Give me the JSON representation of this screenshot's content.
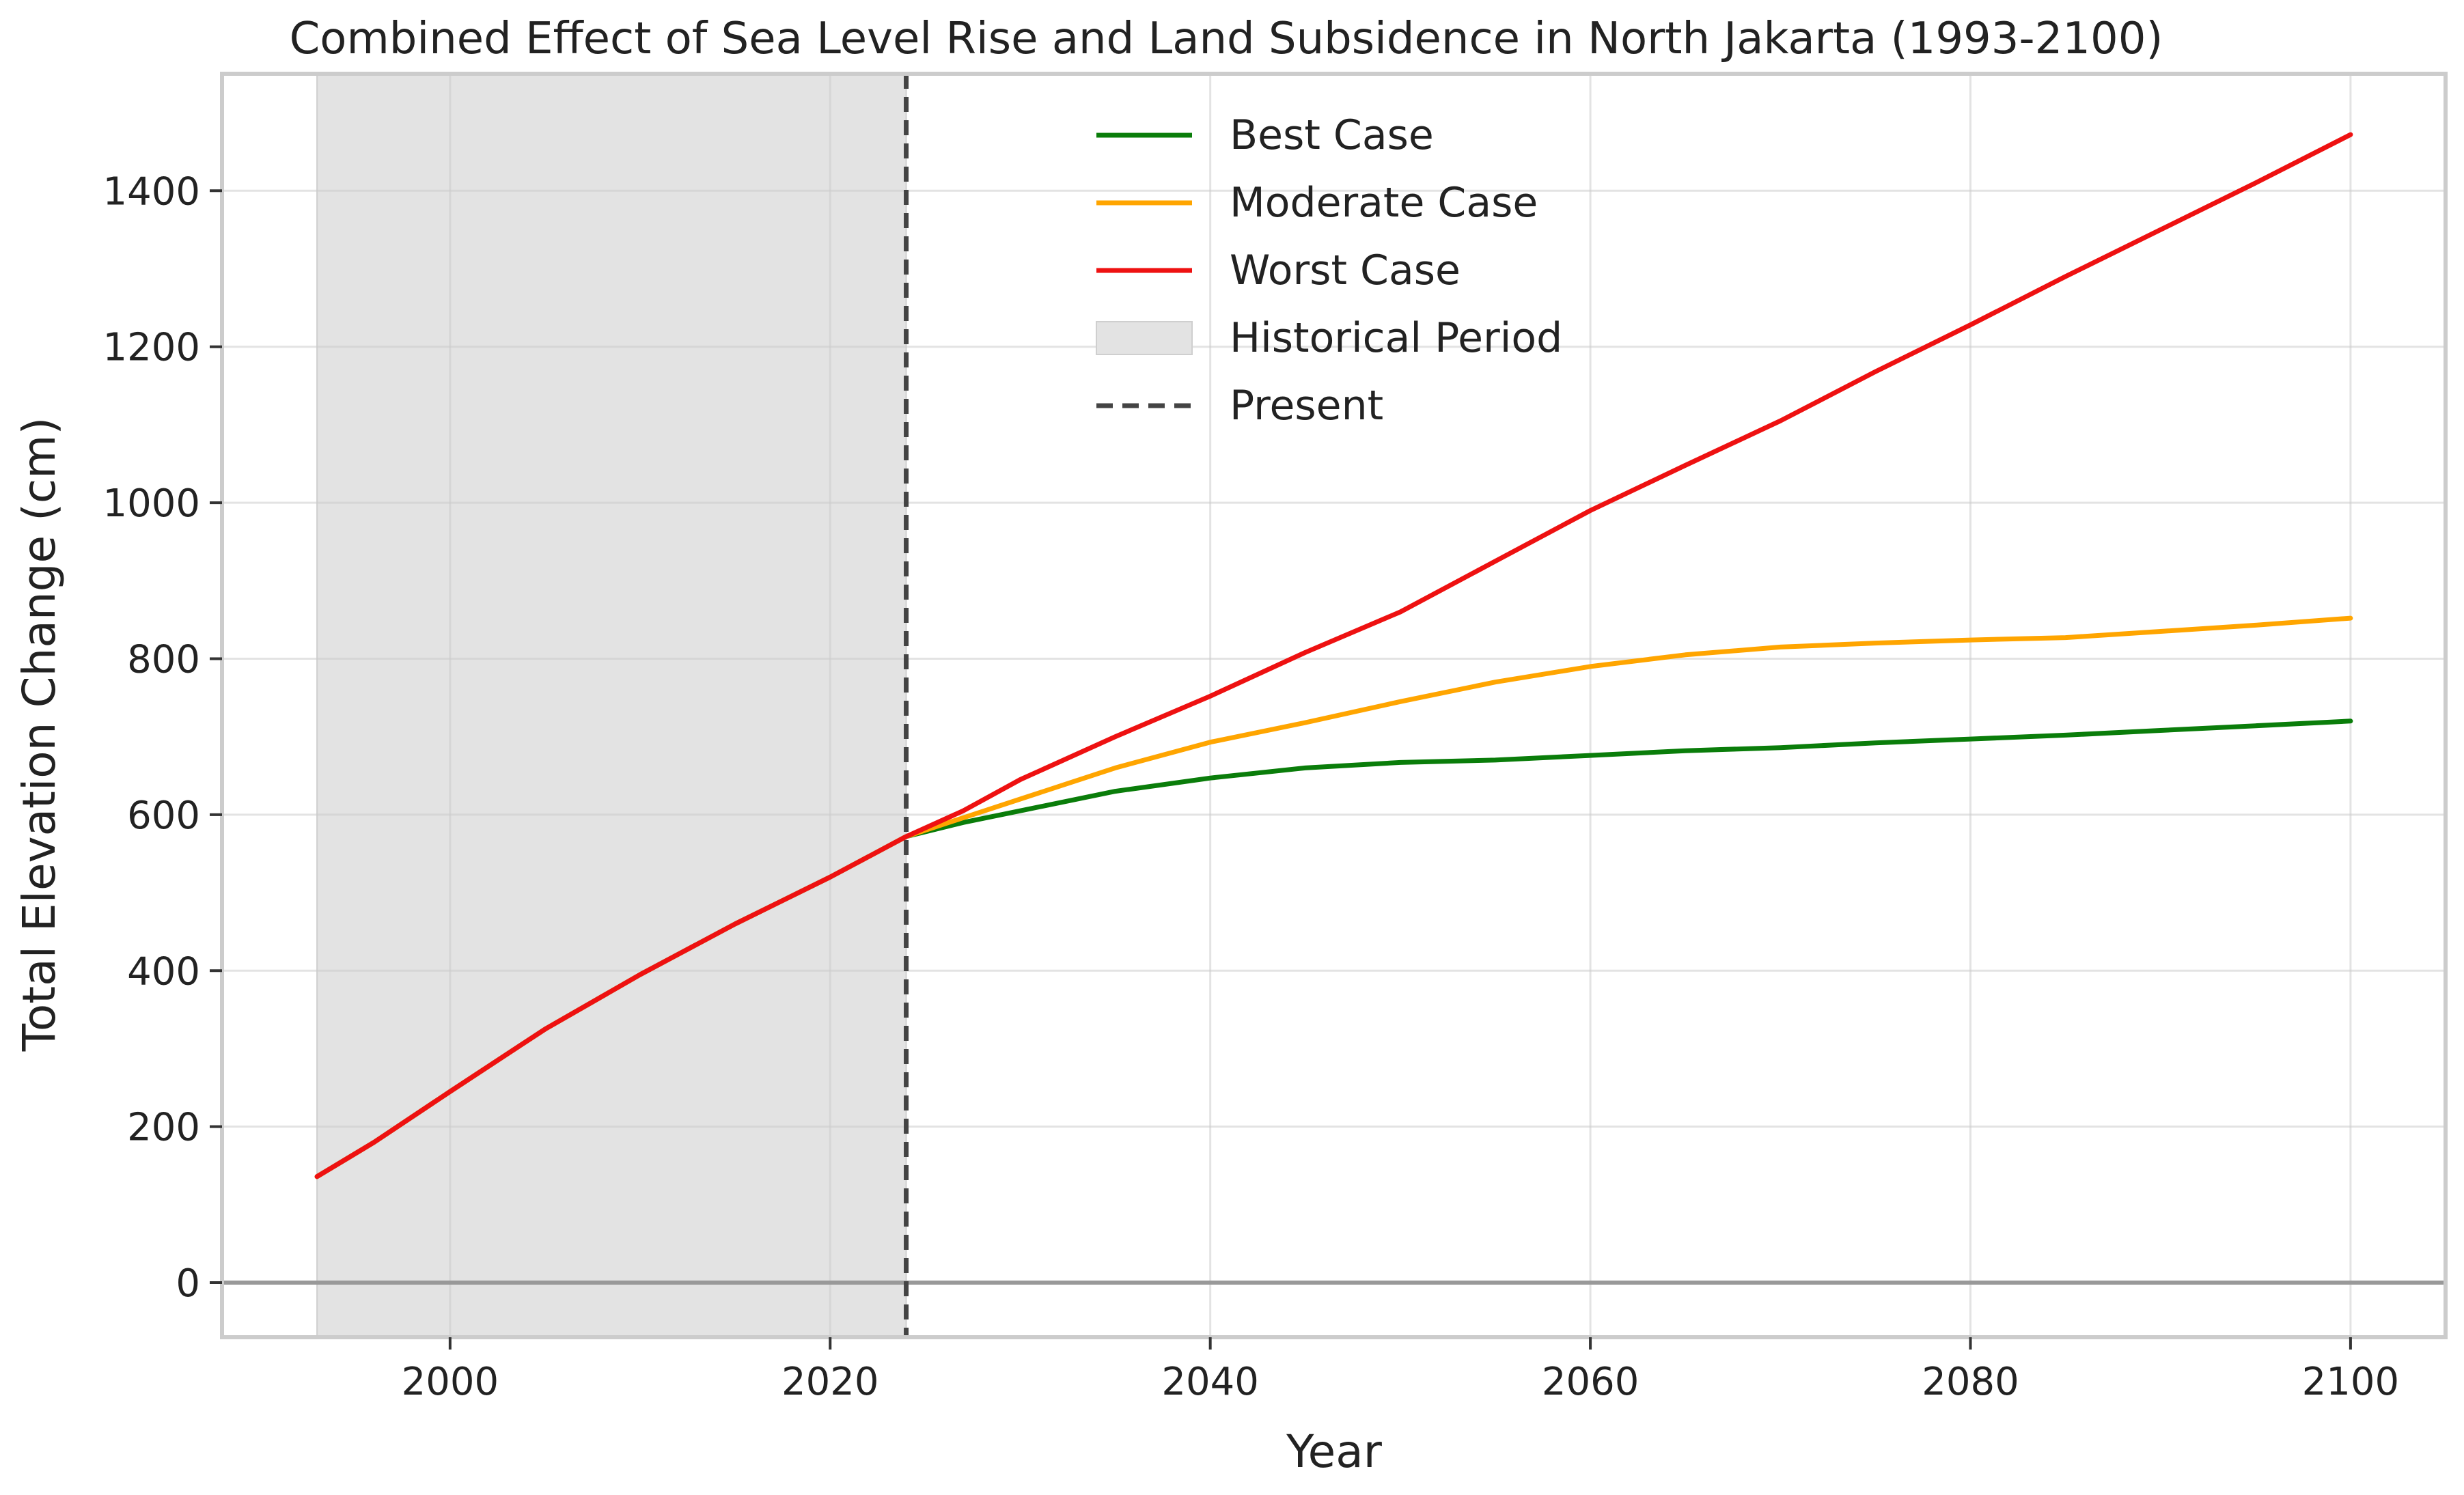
{
  "chart_data": {
    "type": "line",
    "title": "Combined Effect of Sea Level Rise and Land Subsidence in North Jakarta (1993-2100)",
    "xlabel": "Year",
    "ylabel": "Total Elevation Change (cm)",
    "xlim": [
      1988,
      2105
    ],
    "ylim": [
      -70,
      1550
    ],
    "xticks": [
      2000,
      2020,
      2040,
      2060,
      2080,
      2100
    ],
    "yticks": [
      0,
      200,
      400,
      600,
      800,
      1000,
      1200,
      1400
    ],
    "grid": true,
    "legend_position": "top-center",
    "historical_period": {
      "label": "Historical Period",
      "x_start": 1993,
      "x_end": 2024,
      "color": "#e3e3e3"
    },
    "present_line": {
      "label": "Present",
      "x": 2024,
      "color": "#444444"
    },
    "zero_line": {
      "y": 0,
      "color": "#999999"
    },
    "series": [
      {
        "name": "Best Case",
        "color": "#0a7d0a",
        "x": [
          1993,
          1996,
          2000,
          2005,
          2010,
          2015,
          2020,
          2024,
          2027,
          2030,
          2035,
          2040,
          2045,
          2050,
          2055,
          2060,
          2065,
          2070,
          2075,
          2080,
          2085,
          2090,
          2095,
          2100
        ],
        "values": [
          136,
          180,
          245,
          325,
          395,
          460,
          520,
          572,
          590,
          605,
          630,
          647,
          660,
          667,
          670,
          676,
          682,
          686,
          692,
          697,
          702,
          708,
          714,
          720
        ]
      },
      {
        "name": "Moderate Case",
        "color": "#ffa500",
        "x": [
          1993,
          1996,
          2000,
          2005,
          2010,
          2015,
          2020,
          2024,
          2027,
          2030,
          2035,
          2040,
          2045,
          2050,
          2055,
          2060,
          2065,
          2070,
          2075,
          2080,
          2085,
          2090,
          2095,
          2100
        ],
        "values": [
          136,
          180,
          245,
          325,
          395,
          460,
          520,
          572,
          596,
          620,
          660,
          693,
          718,
          745,
          770,
          790,
          805,
          815,
          820,
          824,
          827,
          835,
          843,
          852
        ]
      },
      {
        "name": "Worst Case",
        "color": "#ee1111",
        "x": [
          1993,
          1996,
          2000,
          2005,
          2010,
          2015,
          2020,
          2024,
          2027,
          2030,
          2035,
          2040,
          2045,
          2050,
          2055,
          2060,
          2065,
          2070,
          2075,
          2080,
          2085,
          2090,
          2095,
          2100
        ],
        "values": [
          136,
          180,
          245,
          325,
          395,
          460,
          520,
          572,
          605,
          645,
          700,
          752,
          808,
          860,
          925,
          990,
          1048,
          1105,
          1168,
          1228,
          1290,
          1350,
          1410,
          1472
        ]
      }
    ]
  }
}
